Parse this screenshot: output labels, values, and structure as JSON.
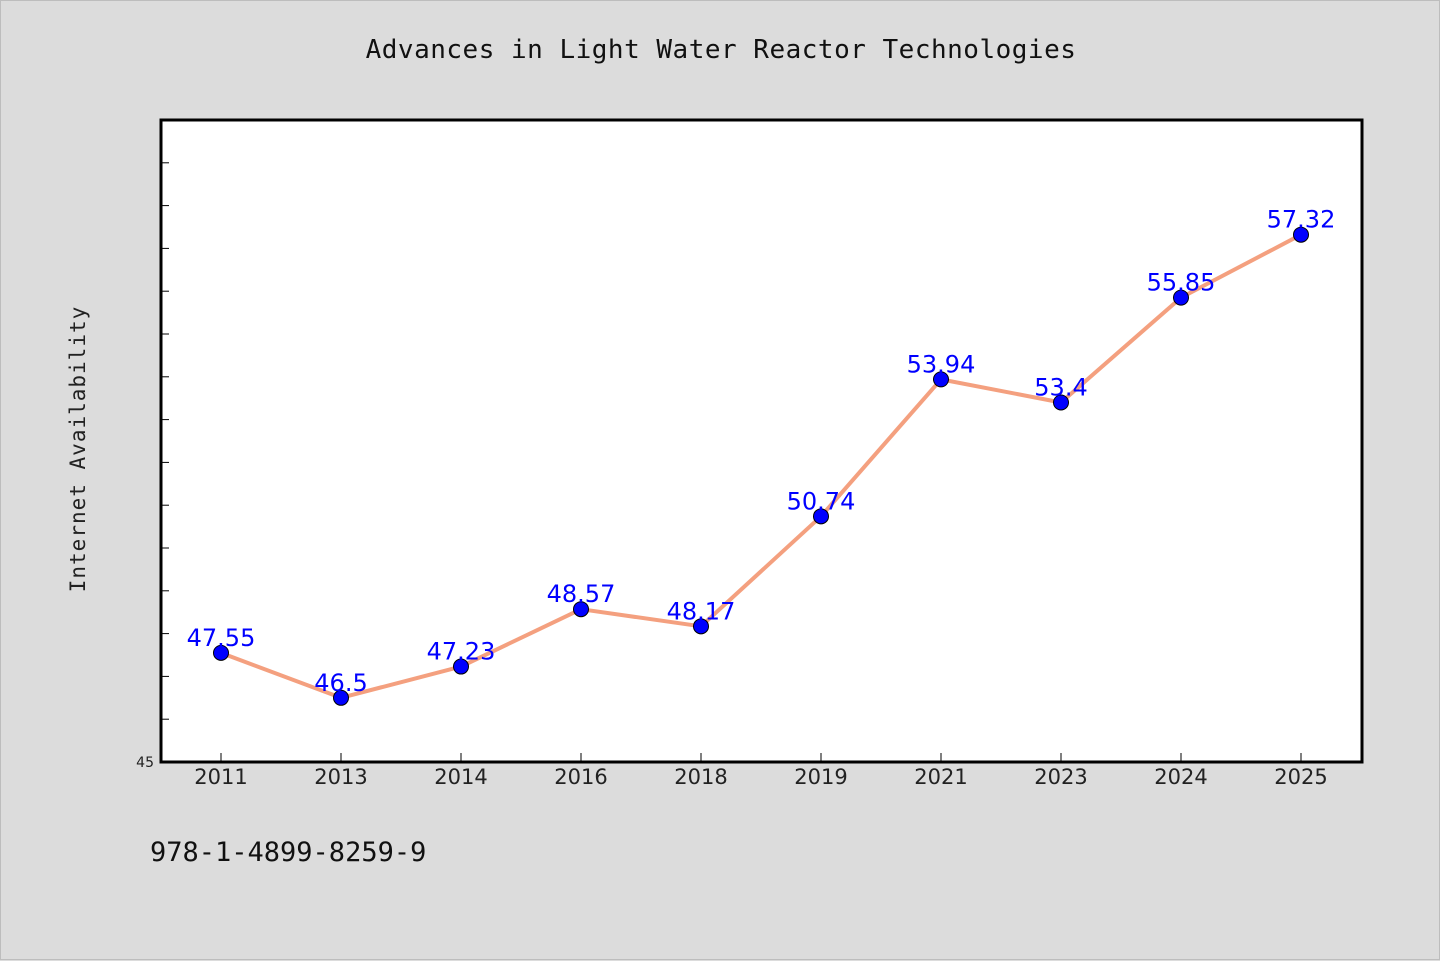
{
  "chart_data": {
    "type": "line",
    "title": "Advances in Light Water Reactor Technologies",
    "xlabel": "",
    "ylabel": "Internet Availability",
    "categories": [
      "2011",
      "2013",
      "2014",
      "2016",
      "2018",
      "2019",
      "2021",
      "2023",
      "2024",
      "2025"
    ],
    "series": [
      {
        "values": [
          47.55,
          46.5,
          47.23,
          48.57,
          48.17,
          50.74,
          53.94,
          53.4,
          55.85,
          57.32
        ],
        "data_labels": [
          "47.55",
          "46.5",
          "47.23",
          "48.57",
          "48.17",
          "50.74",
          "53.94",
          "53.4",
          "55.85",
          "57.32"
        ],
        "line_color": "#f4a07f",
        "marker_color": "#0000ff"
      }
    ],
    "ylim": [
      45,
      60
    ],
    "y_tick_label": "45",
    "grid": false,
    "legend": "none"
  },
  "footer": {
    "isbn": "978-1-4899-8259-9"
  },
  "colors": {
    "background": "#dcdcdc",
    "plot_background": "#ffffff",
    "line": "#f4a07f",
    "marker": "#0000ff",
    "data_label": "#0000ff"
  }
}
